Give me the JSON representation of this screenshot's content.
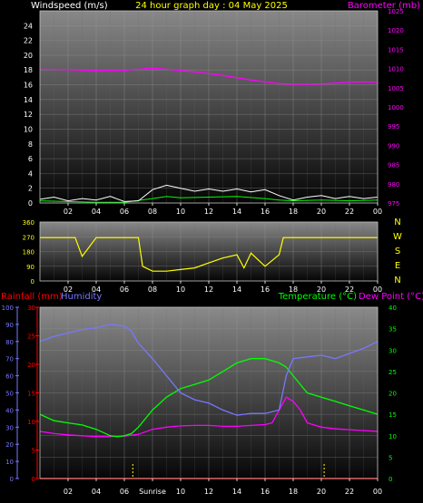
{
  "page_title": "24 hour graph day : 04 May 2025",
  "colors": {
    "wind": "#ffffff",
    "gust": "#00ff00",
    "barometer": "#ff00ff",
    "direction": "#ffff00",
    "title": "#ffff00",
    "rainfall": "#ff0000",
    "humidity": "#7777ff",
    "temperature": "#00ff00",
    "dewpoint": "#ff00ff"
  },
  "chart_data": [
    {
      "type": "line",
      "title": "24 hour graph day : 04 May 2025",
      "left_axis_label": "Windspeed (m/s)",
      "right_axis_label": "Barometer (mb)",
      "x_ticks": [
        "02",
        "04",
        "06",
        "08",
        "10",
        "12",
        "14",
        "16",
        "18",
        "20",
        "22",
        "00"
      ],
      "y_left_ticks": [
        "0",
        "2",
        "4",
        "6",
        "8",
        "10",
        "12",
        "14",
        "16",
        "18",
        "20",
        "22",
        "24"
      ],
      "y_left_range": [
        0,
        26
      ],
      "y_right_ticks": [
        "975",
        "980",
        "985",
        "990",
        "995",
        "1000",
        "1005",
        "1010",
        "1015",
        "1020",
        "1025"
      ],
      "y_right_range": [
        975,
        1025
      ],
      "series": [
        {
          "name": "Barometer",
          "axis": "right",
          "x": [
            0,
            2,
            4,
            6,
            7,
            8,
            9,
            10,
            11,
            12,
            13,
            14,
            15,
            16,
            17,
            18,
            19,
            20,
            21,
            22,
            23,
            24
          ],
          "values": [
            1009.8,
            1009.7,
            1009.5,
            1009.6,
            1009.8,
            1010.1,
            1009.8,
            1009.5,
            1009.1,
            1008.7,
            1008.2,
            1007.6,
            1007.0,
            1006.5,
            1006.1,
            1005.9,
            1005.9,
            1006.0,
            1006.2,
            1006.4,
            1006.5,
            1006.4
          ]
        },
        {
          "name": "Wind speed",
          "axis": "left",
          "x": [
            0,
            1,
            2,
            3,
            4,
            5,
            6,
            7,
            8,
            9,
            10,
            11,
            12,
            13,
            14,
            15,
            16,
            17,
            18,
            19,
            20,
            21,
            22,
            23,
            24
          ],
          "values": [
            0.5,
            0.8,
            0.3,
            0.6,
            0.4,
            0.9,
            0.2,
            0.3,
            1.8,
            2.4,
            2.0,
            1.6,
            1.9,
            1.6,
            1.9,
            1.5,
            1.8,
            1.0,
            0.4,
            0.8,
            1.0,
            0.6,
            0.9,
            0.6,
            0.8
          ]
        },
        {
          "name": "Gust",
          "axis": "left",
          "x": [
            0,
            2,
            4,
            6,
            8,
            9,
            10,
            12,
            14,
            16,
            17,
            18,
            20,
            22,
            24
          ],
          "values": [
            0.3,
            0.2,
            0.1,
            0.1,
            0.6,
            0.9,
            0.7,
            0.8,
            0.9,
            0.6,
            0.4,
            0.3,
            0.4,
            0.3,
            0.4
          ]
        }
      ]
    },
    {
      "type": "line",
      "title": "Wind direction",
      "x_ticks": [
        "02",
        "04",
        "06",
        "08",
        "10",
        "12",
        "14",
        "16",
        "18",
        "20",
        "22",
        "00"
      ],
      "y_ticks": [
        "0",
        "90",
        "180",
        "270",
        "360"
      ],
      "y_range": [
        0,
        360
      ],
      "compass_labels": [
        "N",
        "W",
        "S",
        "E",
        "N"
      ],
      "series": [
        {
          "name": "Direction",
          "x": [
            0,
            2,
            2.5,
            3,
            4,
            5,
            6,
            7,
            7.3,
            8,
            9,
            10,
            11,
            12,
            13,
            14,
            14.5,
            15,
            16,
            17,
            17.3,
            18,
            20,
            22,
            24
          ],
          "values": [
            265,
            265,
            265,
            150,
            265,
            265,
            265,
            265,
            90,
            60,
            60,
            70,
            80,
            110,
            140,
            160,
            80,
            170,
            90,
            160,
            265,
            265,
            265,
            265,
            265
          ]
        }
      ]
    },
    {
      "type": "line",
      "title": "",
      "left_axis_labels": [
        "Rainfall (mm)",
        "Humidity"
      ],
      "right_axis_labels": [
        "Temperature (°C)",
        "Dew Point (°C)"
      ],
      "x_ticks": [
        "02",
        "04",
        "06",
        "Sunrise",
        "10",
        "12",
        "14",
        "16",
        "18",
        "20",
        "22",
        "00"
      ],
      "y_humidity_ticks": [
        "0",
        "10",
        "20",
        "30",
        "40",
        "50",
        "60",
        "70",
        "80",
        "90",
        "100"
      ],
      "y_humidity_range": [
        0,
        100
      ],
      "y_rain_ticks": [
        "0",
        "5",
        "10",
        "15",
        "20",
        "25",
        "30"
      ],
      "y_rain_range": [
        0,
        30
      ],
      "y_temp_ticks": [
        "0",
        "5",
        "10",
        "15",
        "20",
        "25",
        "30",
        "35",
        "40"
      ],
      "y_temp_range": [
        0,
        40
      ],
      "series": [
        {
          "name": "Humidity",
          "axis": "humidity",
          "x": [
            0,
            1,
            2,
            3,
            4,
            5,
            6,
            6.5,
            7,
            8,
            9,
            10,
            11,
            12,
            13,
            14,
            15,
            16,
            17,
            17.5,
            18,
            19,
            20,
            21,
            22,
            23,
            24
          ],
          "values": [
            80,
            83,
            85,
            87,
            88,
            90,
            89,
            86,
            79,
            70,
            60,
            50,
            46,
            44,
            40,
            37,
            38,
            38,
            40,
            60,
            70,
            71,
            72,
            70,
            73,
            76,
            80
          ]
        },
        {
          "name": "Temperature",
          "axis": "temp",
          "x": [
            0,
            1,
            2,
            3,
            4,
            5,
            5.5,
            6,
            6.5,
            7,
            8,
            9,
            10,
            11,
            12,
            13,
            14,
            15,
            16,
            17,
            17.5,
            18,
            19,
            20,
            21,
            22,
            23,
            24
          ],
          "values": [
            15,
            13.5,
            13,
            12.5,
            11.5,
            10,
            9.8,
            10,
            10.5,
            12,
            16,
            19,
            21,
            22,
            23,
            25,
            27,
            28,
            28,
            27,
            26,
            24,
            20,
            19,
            18,
            17,
            16,
            15
          ]
        },
        {
          "name": "Dew Point",
          "axis": "temp",
          "x": [
            0,
            1,
            2,
            3,
            4,
            5,
            6,
            7,
            8,
            9,
            10,
            11,
            12,
            13,
            14,
            15,
            16,
            16.5,
            17,
            17.5,
            18,
            18.5,
            19,
            20,
            21,
            22,
            23,
            24
          ],
          "values": [
            11,
            10.5,
            10.2,
            10,
            9.8,
            9.8,
            9.9,
            10.3,
            11.5,
            12,
            12.3,
            12.4,
            12.4,
            12.2,
            12.2,
            12.4,
            12.6,
            13,
            16,
            19,
            18,
            16,
            13,
            12,
            11.6,
            11.4,
            11.2,
            11
          ]
        },
        {
          "name": "Rainfall",
          "axis": "rain",
          "x": [
            0,
            24
          ],
          "values": [
            0,
            0
          ]
        }
      ],
      "markers": [
        {
          "label": "Sunrise",
          "x": 6.6
        },
        {
          "label": "",
          "x": 20.2
        }
      ]
    }
  ]
}
